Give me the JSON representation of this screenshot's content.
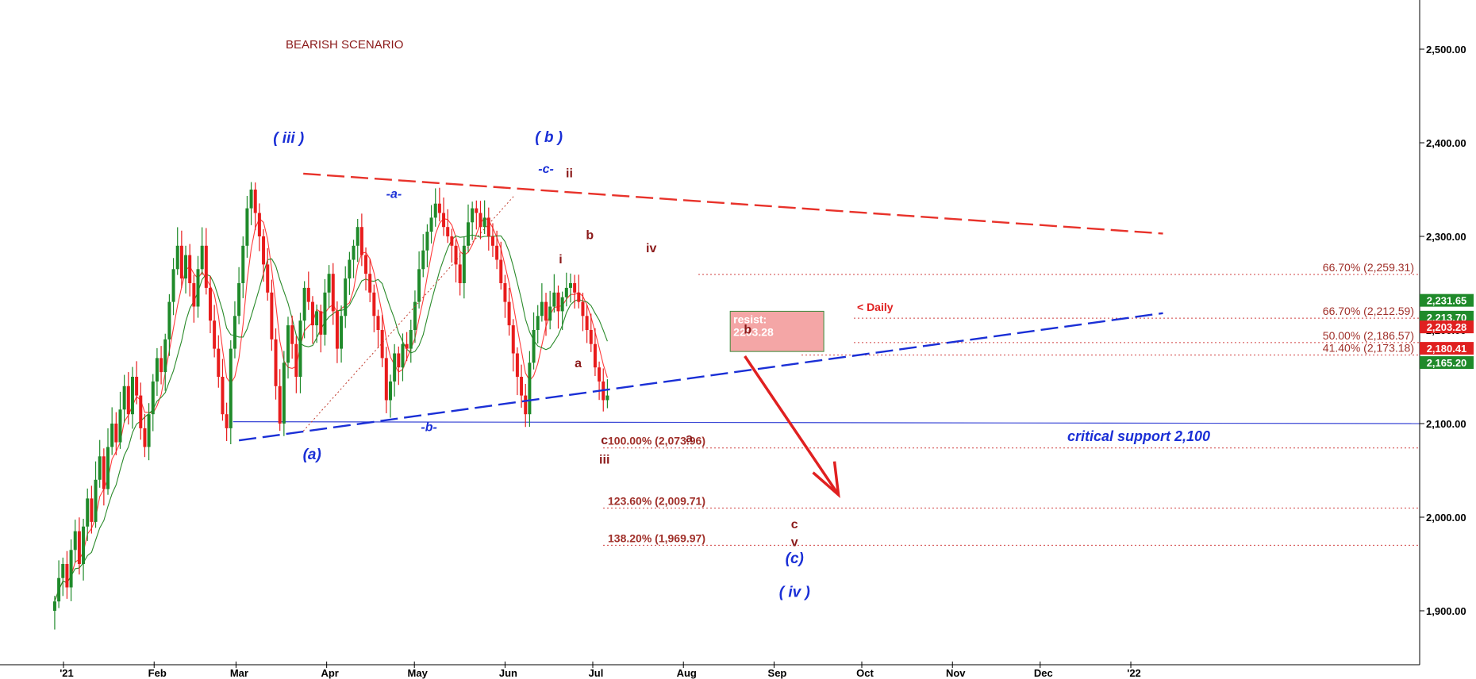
{
  "chart_data": {
    "type": "candlestick",
    "title": "BEARISH SCENARIO",
    "xlabel": "",
    "ylabel": "",
    "ylim": [
      1880,
      2570
    ],
    "grid": false,
    "price_axis_ticks": [
      "2,500.00",
      "2,400.00",
      "2,300.00",
      "2,200.00",
      "2,100.00",
      "2,000.00",
      "1,900.00"
    ],
    "price_axis_tick_values": [
      2500,
      2400,
      2300,
      2200,
      2100,
      2000,
      1900
    ],
    "month_labels": [
      "'21",
      "Feb",
      "Mar",
      "Apr",
      "May",
      "Jun",
      "Jul",
      "Aug",
      "Sep",
      "Oct",
      "Nov",
      "Dec",
      "'22"
    ],
    "month_days": [
      0,
      31,
      59,
      90,
      120,
      151,
      181,
      212,
      243,
      273,
      304,
      334,
      365
    ],
    "series": [
      {
        "name": "",
        "type": "candles",
        "x_start_day": -3,
        "x_step_days": 1.4,
        "closes": [
          1910,
          1935,
          1950,
          1925,
          1965,
          1985,
          1950,
          1990,
          2020,
          1995,
          2040,
          2065,
          2030,
          2075,
          2100,
          2080,
          2115,
          2140,
          2110,
          2150,
          2130,
          2095,
          2075,
          2110,
          2145,
          2170,
          2155,
          2190,
          2230,
          2265,
          2290,
          2255,
          2280,
          2250,
          2225,
          2265,
          2290,
          2245,
          2210,
          2180,
          2150,
          2110,
          2095,
          2180,
          2215,
          2250,
          2290,
          2330,
          2350,
          2325,
          2300,
          2270,
          2240,
          2190,
          2140,
          2100,
          2165,
          2205,
          2185,
          2150,
          2210,
          2245,
          2230,
          2205,
          2220,
          2195,
          2240,
          2260,
          2220,
          2180,
          2215,
          2255,
          2275,
          2290,
          2310,
          2280,
          2260,
          2240,
          2215,
          2200,
          2170,
          2125,
          2145,
          2175,
          2160,
          2185,
          2180,
          2200,
          2230,
          2265,
          2285,
          2305,
          2320,
          2335,
          2325,
          2310,
          2300,
          2290,
          2270,
          2250,
          2290,
          2315,
          2330,
          2325,
          2310,
          2320,
          2300,
          2290,
          2275,
          2250,
          2230,
          2205,
          2175,
          2150,
          2130,
          2110,
          2165,
          2200,
          2215,
          2230,
          2210,
          2225,
          2240,
          2220,
          2235,
          2245,
          2250,
          2240,
          2230,
          2215,
          2200,
          2185,
          2160,
          2145,
          2125,
          2130
        ]
      },
      {
        "name": "",
        "type": "moving-average-fast",
        "color": "#ff3b3b"
      },
      {
        "name": "",
        "type": "moving-average-slow",
        "color": "#2a8a2a"
      }
    ],
    "trendlines": [
      {
        "name": "",
        "style": "dashed",
        "color": "#e8322a",
        "from": {
          "day": 82,
          "value": 2367
        },
        "to": {
          "day": 376,
          "value": 2303
        }
      },
      {
        "name": "",
        "style": "dashed",
        "color": "#1a2fd6",
        "from": {
          "day": 60,
          "value": 2082
        },
        "to": {
          "day": 376,
          "value": 2218
        }
      },
      {
        "name": "",
        "style": "dotted",
        "color": "#c0392b",
        "from": {
          "day": 82,
          "value": 2092
        },
        "to": {
          "day": 154,
          "value": 2343
        }
      },
      {
        "name": "",
        "style": "solid",
        "color": "#3a47d6",
        "from": {
          "day": 58,
          "value": 2102
        },
        "to": {
          "day": 376,
          "value": 2100
        }
      }
    ],
    "fibonacci_levels": [
      {
        "label": "66.70% (2,259.31)",
        "value": 2259.31
      },
      {
        "label": "66.70% (2,212.59)",
        "value": 2212.59
      },
      {
        "label": "50.00% (2,186.57)",
        "value": 2186.57
      },
      {
        "label": "41.40% (2,173.18)",
        "value": 2173.18
      },
      {
        "label": "100.00% (2,073.96)",
        "value": 2073.96
      },
      {
        "label": "123.60% (2,009.71)",
        "value": 2009.71
      },
      {
        "label": "138.20% (1,969.97)",
        "value": 1969.97
      }
    ],
    "price_badges": [
      {
        "text": "2,231.65",
        "value": 2231.65,
        "color": "#1f8a2a"
      },
      {
        "text": "2,213.70",
        "value": 2213.7,
        "color": "#1f8a2a"
      },
      {
        "text": "2,203.28",
        "value": 2203.28,
        "color": "#e02020"
      },
      {
        "text": "2,180.41",
        "value": 2180.41,
        "color": "#e02020"
      },
      {
        "text": "2,165.20",
        "value": 2165.2,
        "color": "#1f8a2a"
      }
    ],
    "resistance_box": {
      "line1": "resist:",
      "line2": "2203.28",
      "from_day": 228,
      "to_day": 260,
      "high": 2220,
      "low": 2177
    },
    "daily_marker": "<  Daily",
    "projection_arrow": {
      "from": {
        "day": 233,
        "value": 2172
      },
      "to": {
        "day": 265,
        "value": 2024
      },
      "color": "#e02020"
    },
    "support_label": "critical support 2,100",
    "wave_labels": [
      {
        "text": "( iii )",
        "day": 77,
        "value": 2400,
        "color": "#1a2fd6",
        "italic": true
      },
      {
        "text": "( b )",
        "day": 166,
        "value": 2401,
        "color": "#1a2fd6",
        "italic": true
      },
      {
        "text": "-a-",
        "day": 113,
        "value": 2341,
        "color": "#1a2fd6",
        "italic": true
      },
      {
        "text": "-c-",
        "day": 165,
        "value": 2368,
        "color": "#1a2fd6",
        "italic": true
      },
      {
        "text": "-b-",
        "day": 125,
        "value": 2092,
        "color": "#1a2fd6",
        "italic": true
      },
      {
        "text": "(a)",
        "day": 85,
        "value": 2062,
        "color": "#1a2fd6",
        "italic": true
      },
      {
        "text": "( iv )",
        "day": 250,
        "value": 1915,
        "color": "#1a2fd6",
        "italic": true
      },
      {
        "text": "(c)",
        "day": 250,
        "value": 1951,
        "color": "#1a2fd6",
        "italic": true
      },
      {
        "text": "ii",
        "day": 173,
        "value": 2363,
        "color": "#8b1a1a",
        "italic": false
      },
      {
        "text": "i",
        "day": 170,
        "value": 2271,
        "color": "#8b1a1a",
        "italic": false
      },
      {
        "text": "b",
        "day": 180,
        "value": 2297,
        "color": "#8b1a1a",
        "italic": false
      },
      {
        "text": "a",
        "day": 176,
        "value": 2160,
        "color": "#8b1a1a",
        "italic": false
      },
      {
        "text": "iv",
        "day": 201,
        "value": 2283,
        "color": "#8b1a1a",
        "italic": false
      },
      {
        "text": "b",
        "day": 234,
        "value": 2196,
        "color": "#8b1a1a",
        "italic": false
      },
      {
        "text": "c",
        "day": 185,
        "value": 2078,
        "color": "#8b1a1a",
        "italic": false
      },
      {
        "text": "iii",
        "day": 185,
        "value": 2057,
        "color": "#8b1a1a",
        "italic": false
      },
      {
        "text": "a",
        "day": 214,
        "value": 2080,
        "color": "#8b1a1a",
        "italic": false
      },
      {
        "text": "c",
        "day": 250,
        "value": 1988,
        "color": "#8b1a1a",
        "italic": false
      },
      {
        "text": "v",
        "day": 250,
        "value": 1969,
        "color": "#8b1a1a",
        "italic": false
      }
    ]
  }
}
